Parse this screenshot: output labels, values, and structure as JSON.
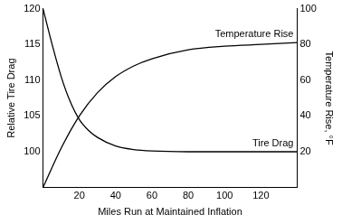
{
  "chart_data": {
    "type": "line",
    "x_label": "Miles Run at Maintained Inflation",
    "y_label": "Relative Tire Drag",
    "y2_label": "Temperature Rise, °F",
    "xlim": [
      0,
      140
    ],
    "xticks": [
      20,
      40,
      60,
      80,
      100,
      120
    ],
    "ylim": [
      95,
      120
    ],
    "yticks": [
      100,
      105,
      110,
      115,
      120
    ],
    "y2lim": [
      0,
      100
    ],
    "y2ticks": [
      20,
      40,
      60,
      80,
      100
    ],
    "grid": false,
    "series": [
      {
        "name": "Tire Drag",
        "color": "#000000",
        "axis": "y",
        "x": [
          0,
          5,
          10,
          15,
          20,
          25,
          30,
          40,
          50,
          60,
          80,
          100,
          120,
          140
        ],
        "values": [
          120,
          115,
          110.5,
          107,
          104.5,
          103,
          102,
          100.8,
          100.3,
          100.1,
          100,
          100,
          100,
          100
        ]
      },
      {
        "name": "Temperature Rise",
        "color": "#000000",
        "axis": "y2",
        "x": [
          0,
          10,
          20,
          30,
          40,
          50,
          60,
          80,
          100,
          120,
          140
        ],
        "values": [
          0,
          22,
          40,
          53,
          62,
          68,
          72,
          77,
          79,
          80,
          81
        ]
      }
    ]
  }
}
